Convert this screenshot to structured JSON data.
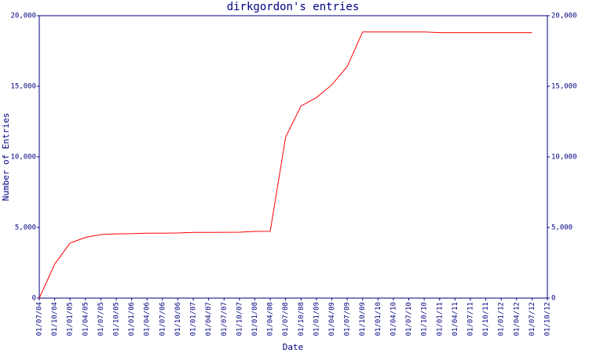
{
  "chart_data": {
    "type": "line",
    "title": "dirkgordon's entries",
    "x_label": "Date",
    "y_label": "Number of Entries",
    "x": [
      "01/07/04",
      "01/10/04",
      "01/01/05",
      "01/04/05",
      "01/07/05",
      "01/10/05",
      "01/01/06",
      "01/04/06",
      "01/07/06",
      "01/10/06",
      "01/01/07",
      "01/04/07",
      "01/07/07",
      "01/10/07",
      "01/01/08",
      "01/04/08",
      "01/07/08",
      "01/10/08",
      "01/01/09",
      "01/04/09",
      "01/07/09",
      "01/10/09",
      "01/01/10",
      "01/04/10",
      "01/07/10",
      "01/10/10",
      "01/01/11",
      "01/04/11",
      "01/07/11",
      "01/10/11",
      "01/01/12",
      "01/04/12",
      "01/07/12",
      "01/10/12"
    ],
    "series": [
      {
        "name": "Entries",
        "color": "#ff0000",
        "values": [
          0,
          2400,
          3900,
          4300,
          4500,
          4550,
          4560,
          4600,
          4600,
          4610,
          4650,
          4650,
          4660,
          4670,
          4720,
          4730,
          11400,
          13600,
          14200,
          15100,
          16400,
          18850,
          18850,
          18850,
          18850,
          18850,
          18800,
          18800,
          18800,
          18800,
          18800,
          18800,
          18800,
          null
        ]
      }
    ],
    "ylim": [
      0,
      20000
    ],
    "yticks": [
      0,
      {
        "value": 5000,
        "label": "5,000"
      },
      {
        "value": 10000,
        "label": "10,000"
      },
      {
        "value": 15000,
        "label": "15,000"
      },
      {
        "value": 20000,
        "label": "20,000"
      }
    ],
    "axis_color": "#000080",
    "grid": false
  }
}
